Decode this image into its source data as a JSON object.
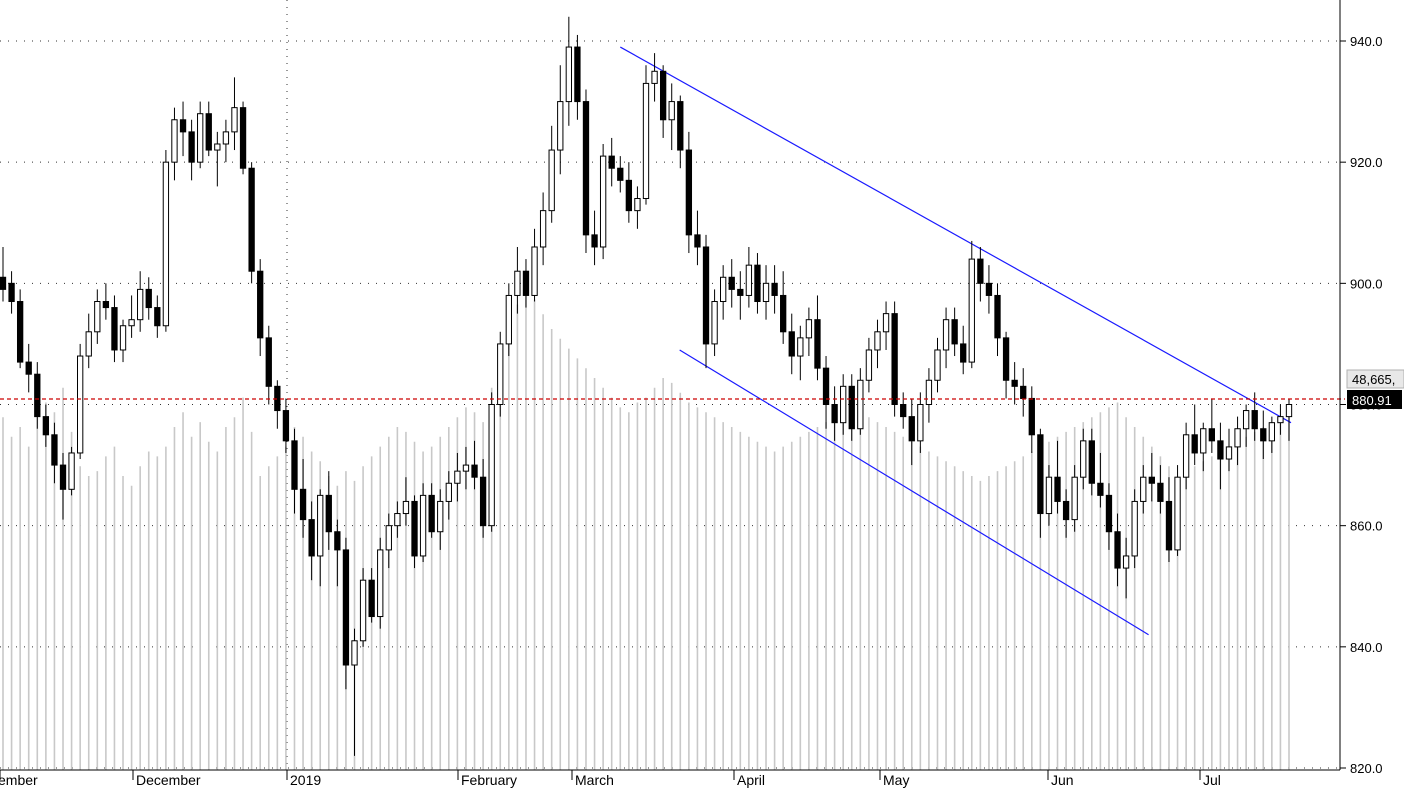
{
  "chart_data": {
    "type": "candlestick",
    "title": "",
    "xlabel": "",
    "ylabel": "",
    "ylim": [
      820,
      946
    ],
    "y_ticks": [
      820,
      840,
      860,
      880,
      900,
      920,
      940
    ],
    "y_tick_labels": [
      "820.0",
      "840.0",
      "860.0",
      "880.0",
      "900.0",
      "920.0",
      "940.0"
    ],
    "x_labels": [
      {
        "label": "ember",
        "index": 0
      },
      {
        "label": "December",
        "index": 22
      },
      {
        "label": "2019",
        "index": 47
      },
      {
        "label": "February",
        "index": 76
      },
      {
        "label": "March",
        "index": 95
      },
      {
        "label": "April",
        "index": 122
      },
      {
        "label": "May",
        "index": 146
      },
      {
        "label": "Jun",
        "index": 174
      },
      {
        "label": "Jul",
        "index": 199
      }
    ],
    "last_price_label": "880.91",
    "last_price": 880.91,
    "volume_label": "48,665,",
    "grid": true,
    "colors": {
      "up": "#ffffff",
      "down": "#000000",
      "volume": "#c8c8c8",
      "trendline": "#1a1aff",
      "price_line": "#cc0000"
    },
    "trendlines": [
      {
        "name": "",
        "start_index": 104,
        "start_value": 939,
        "end_index": 217,
        "end_value": 877
      },
      {
        "name": "",
        "start_index": 114,
        "start_value": 889,
        "end_index": 193,
        "end_value": 842
      }
    ],
    "candles": [
      [
        [
          0,
          901,
          906,
          897,
          899
        ],
        [
          1,
          900,
          902,
          895,
          897
        ],
        [
          2,
          897,
          899,
          886,
          887
        ],
        [
          3,
          887,
          890,
          882,
          885
        ],
        [
          4,
          885,
          887,
          876,
          878
        ],
        [
          5,
          878,
          880,
          873,
          875
        ],
        [
          6,
          875,
          877,
          867,
          870
        ],
        [
          7,
          870,
          872,
          861,
          866
        ],
        [
          8,
          866,
          873,
          865,
          872
        ],
        [
          9,
          872,
          890,
          871,
          888
        ],
        [
          10,
          888,
          895,
          886,
          892
        ],
        [
          11,
          892,
          899,
          890,
          897
        ],
        [
          12,
          897,
          900,
          894,
          896
        ],
        [
          13,
          896,
          898,
          887,
          889
        ],
        [
          14,
          889,
          894,
          887,
          893
        ],
        [
          15,
          893,
          898,
          891,
          894
        ],
        [
          16,
          894,
          902,
          892,
          899
        ],
        [
          17,
          899,
          901,
          894,
          896
        ],
        [
          18,
          896,
          898,
          891,
          893
        ],
        [
          19,
          893,
          922,
          892,
          920
        ],
        [
          20,
          920,
          929,
          917,
          927
        ],
        [
          21,
          927,
          930,
          921,
          925
        ],
        [
          22,
          925,
          927,
          917,
          920
        ],
        [
          23,
          920,
          930,
          919,
          928
        ],
        [
          24,
          928,
          930,
          921,
          922
        ],
        [
          25,
          922,
          925,
          916,
          923
        ],
        [
          26,
          923,
          927,
          920,
          925
        ],
        [
          27,
          925,
          934,
          922,
          929
        ],
        [
          28,
          929,
          930,
          918,
          919
        ],
        [
          29,
          919,
          920,
          900,
          902
        ],
        [
          30,
          902,
          904,
          888,
          891
        ],
        [
          31,
          891,
          893,
          880,
          883
        ],
        [
          32,
          883,
          884,
          876,
          879
        ],
        [
          33,
          879,
          881,
          872,
          874
        ],
        [
          34,
          874,
          876,
          862,
          866
        ],
        [
          35,
          866,
          871,
          858,
          861
        ],
        [
          36,
          861,
          864,
          851,
          855
        ],
        [
          37,
          855,
          866,
          850,
          865
        ],
        [
          38,
          865,
          869,
          856,
          859
        ],
        [
          39,
          859,
          861,
          850,
          856
        ],
        [
          40,
          856,
          858,
          833,
          837
        ],
        [
          41,
          837,
          843,
          822,
          841
        ],
        [
          42,
          841,
          853,
          840,
          851
        ],
        [
          43,
          851,
          853,
          844,
          845
        ],
        [
          44,
          845,
          858,
          843,
          856
        ],
        [
          45,
          856,
          862,
          853,
          860
        ],
        [
          46,
          860,
          864,
          858,
          862
        ],
        [
          47,
          862,
          868,
          860,
          864
        ],
        [
          48,
          864,
          865,
          853,
          855
        ],
        [
          49,
          855,
          867,
          854,
          865
        ],
        [
          50,
          865,
          867,
          858,
          859
        ],
        [
          51,
          859,
          866,
          856,
          864
        ],
        [
          52,
          864,
          869,
          861,
          867
        ],
        [
          53,
          867,
          872,
          864,
          869
        ],
        [
          54,
          869,
          873,
          866,
          870
        ],
        [
          55,
          870,
          874,
          866,
          868
        ],
        [
          56,
          868,
          871,
          858,
          860
        ],
        [
          57,
          860,
          882,
          859,
          880
        ],
        [
          58,
          880,
          892,
          878,
          890
        ],
        [
          59,
          890,
          900,
          888,
          898
        ],
        [
          60,
          898,
          906,
          895,
          902
        ],
        [
          61,
          902,
          904,
          896,
          898
        ],
        [
          62,
          898,
          909,
          897,
          906
        ],
        [
          63,
          906,
          915,
          903,
          912
        ],
        [
          64,
          912,
          926,
          910,
          922
        ],
        [
          65,
          922,
          936,
          918,
          930
        ],
        [
          66,
          930,
          944,
          926,
          939
        ],
        [
          67,
          939,
          941,
          927,
          930
        ],
        [
          68,
          930,
          932,
          905,
          908
        ],
        [
          69,
          908,
          912,
          903,
          906
        ],
        [
          70,
          906,
          923,
          904,
          921
        ],
        [
          71,
          921,
          924,
          916,
          919
        ],
        [
          72,
          919,
          921,
          915,
          917
        ],
        [
          73,
          917,
          920,
          910,
          912
        ],
        [
          74,
          912,
          916,
          909,
          914
        ],
        [
          75,
          914,
          936,
          913,
          933
        ],
        [
          76,
          933,
          938,
          930,
          935
        ],
        [
          77,
          935,
          936,
          924,
          927
        ],
        [
          78,
          927,
          933,
          922,
          930
        ],
        [
          79,
          930,
          931,
          919,
          922
        ],
        [
          80,
          922,
          925,
          905,
          908
        ],
        [
          81,
          908,
          912,
          903,
          906
        ],
        [
          82,
          906,
          908,
          886,
          890
        ],
        [
          83,
          890,
          899,
          888,
          897
        ],
        [
          84,
          897,
          903,
          894,
          901
        ],
        [
          85,
          901,
          904,
          896,
          899
        ],
        [
          86,
          899,
          902,
          894,
          898
        ],
        [
          87,
          898,
          906,
          896,
          903
        ],
        [
          88,
          903,
          905,
          895,
          897
        ],
        [
          89,
          897,
          903,
          894,
          900
        ],
        [
          90,
          900,
          903,
          895,
          898
        ]
      ],
      [
        [
          91,
          898,
          902,
          890,
          892
        ],
        [
          92,
          892,
          895,
          885,
          888
        ],
        [
          93,
          888,
          893,
          884,
          891
        ],
        [
          94,
          891,
          896,
          888,
          894
        ],
        [
          95,
          894,
          898,
          884,
          886
        ],
        [
          96,
          886,
          888,
          876,
          880
        ],
        [
          97,
          880,
          883,
          874,
          877
        ],
        [
          98,
          877,
          885,
          875,
          883
        ],
        [
          99,
          883,
          885,
          874,
          876
        ],
        [
          100,
          876,
          886,
          875,
          884
        ],
        [
          101,
          884,
          891,
          882,
          889
        ],
        [
          102,
          889,
          894,
          886,
          892
        ],
        [
          103,
          892,
          897,
          889,
          895
        ],
        [
          104,
          895,
          897,
          878,
          880
        ],
        [
          105,
          880,
          882,
          876,
          878
        ],
        [
          106,
          878,
          881,
          870,
          874
        ],
        [
          107,
          874,
          882,
          872,
          880
        ],
        [
          108,
          880,
          886,
          877,
          884
        ],
        [
          109,
          884,
          891,
          882,
          889
        ],
        [
          110,
          889,
          896,
          886,
          894
        ],
        [
          111,
          894,
          896,
          888,
          890
        ],
        [
          112,
          890,
          893,
          885,
          887
        ],
        [
          113,
          887,
          907,
          886,
          904
        ],
        [
          114,
          904,
          906,
          897,
          900
        ],
        [
          115,
          900,
          903,
          895,
          898
        ],
        [
          116,
          898,
          900,
          888,
          891
        ],
        [
          117,
          891,
          892,
          881,
          884
        ],
        [
          118,
          884,
          887,
          880,
          883
        ],
        [
          119,
          883,
          886,
          878,
          881
        ],
        [
          120,
          881,
          883,
          872,
          875
        ],
        [
          121,
          875,
          876,
          858,
          862
        ],
        [
          122,
          862,
          870,
          860,
          868
        ],
        [
          123,
          868,
          874,
          862,
          864
        ],
        [
          124,
          864,
          866,
          858,
          861
        ],
        [
          125,
          861,
          870,
          859,
          868
        ],
        [
          126,
          868,
          876,
          866,
          874
        ],
        [
          127,
          874,
          876,
          865,
          867
        ],
        [
          128,
          867,
          872,
          863,
          865
        ],
        [
          129,
          865,
          867,
          856,
          859
        ],
        [
          130,
          859,
          862,
          850,
          853
        ],
        [
          131,
          853,
          858,
          848,
          855
        ],
        [
          132,
          855,
          866,
          853,
          864
        ],
        [
          133,
          864,
          870,
          862,
          868
        ],
        [
          134,
          868,
          872,
          864,
          867
        ],
        [
          135,
          867,
          870,
          862,
          864
        ],
        [
          136,
          864,
          868,
          854,
          856
        ],
        [
          137,
          856,
          870,
          855,
          868
        ],
        [
          138,
          868,
          877,
          866,
          875
        ],
        [
          139,
          875,
          880,
          870,
          872
        ],
        [
          140,
          872,
          877,
          869,
          876
        ],
        [
          141,
          876,
          881,
          872,
          874
        ],
        [
          142,
          874,
          877,
          866,
          871
        ],
        [
          143,
          871,
          876,
          869,
          873
        ],
        [
          144,
          873,
          878,
          870,
          876
        ],
        [
          145,
          876,
          880,
          873,
          879
        ],
        [
          146,
          879,
          882,
          874,
          876
        ],
        [
          147,
          876,
          879,
          871,
          874
        ],
        [
          148,
          874,
          878,
          872,
          877
        ],
        [
          149,
          877,
          880,
          875,
          878
        ],
        [
          150,
          878,
          881,
          874,
          880
        ]
      ]
    ],
    "volume_max": 100,
    "volume": [
      72,
      68,
      70,
      66,
      72,
      75,
      73,
      78,
      69,
      62,
      60,
      61,
      64,
      66,
      60,
      58,
      62,
      65,
      64,
      66,
      70,
      73,
      68,
      71,
      67,
      65,
      70,
      72,
      76,
      69,
      60,
      62,
      64,
      66,
      70,
      68,
      65,
      63,
      60,
      58,
      61,
      59,
      62,
      64,
      66,
      68,
      70,
      69,
      67,
      65,
      66,
      68,
      70,
      72,
      74,
      73,
      71,
      78,
      85,
      92,
      95,
      97,
      96,
      93,
      90,
      88,
      86,
      84,
      82,
      80,
      78,
      76,
      74,
      73,
      75,
      76,
      78,
      80,
      79,
      77,
      75,
      74,
      73,
      72,
      71,
      70,
      69,
      68,
      67,
      66,
      65,
      66,
      67,
      68,
      69,
      70,
      71,
      72,
      73,
      74,
      73,
      72,
      71,
      70,
      69,
      68,
      67,
      66,
      65,
      64,
      63,
      62,
      61,
      60,
      59,
      60,
      61,
      62,
      63,
      64,
      65,
      66,
      67,
      68,
      69,
      70,
      71,
      72,
      73,
      74,
      75,
      72,
      70,
      68,
      66,
      64,
      62,
      60,
      61,
      62,
      63,
      64,
      65,
      66,
      67,
      68,
      69,
      70,
      71,
      72,
      73,
      74
    ]
  }
}
